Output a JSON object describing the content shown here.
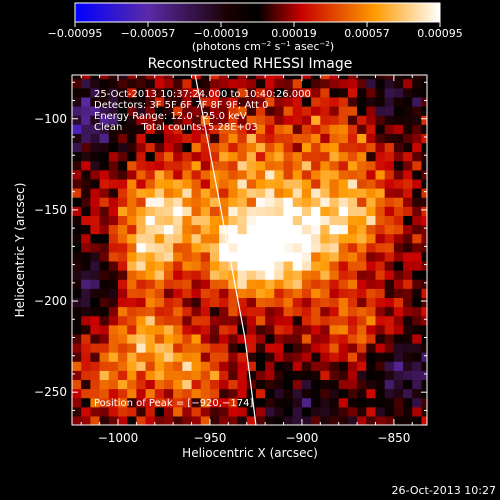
{
  "chart_data": {
    "type": "heatmap",
    "title": "Reconstructed RHESSI Image",
    "xlabel": "Heliocentric X (arcsec)",
    "ylabel": "Heliocentric Y (arcsec)",
    "xlim": [
      -1025,
      -832
    ],
    "ylim": [
      -268,
      -76
    ],
    "x_ticks": [
      -1000,
      -950,
      -900,
      -850
    ],
    "y_ticks": [
      -100,
      -150,
      -200,
      -250
    ],
    "x_tick_labels": [
      "−1000",
      "−950",
      "−900",
      "−850"
    ],
    "y_tick_labels": [
      "−100",
      "−150",
      "−200",
      "−250"
    ],
    "colorbar": {
      "min": -0.00095,
      "max": 0.00095,
      "ticks": [
        -0.00095,
        -0.00057,
        -0.00019,
        0.00019,
        0.00057,
        0.00095
      ],
      "tick_labels": [
        "−0.00095",
        "−0.00057",
        "−0.00019",
        "0.00019",
        "0.00057",
        "0.00095"
      ],
      "unit_parts": {
        "open": "(photons cm",
        "exp1": "−2",
        "mid1": " s",
        "exp2": "−1",
        "mid2": " asec",
        "exp3": "−2",
        "close": ")"
      },
      "colormap": "red-temperature"
    },
    "peak": {
      "x": -920,
      "y": -174
    },
    "annotations": {
      "time_range": "25-Oct-2013 10:37:24.000 to 10:40:26.000",
      "detectors": "Detectors: 3F 5F 6F 7F 8F 9F; Att 0",
      "energy": "Energy Range: 12.0 - 25.0 keV",
      "clean": "Clean      Total counts: 5.28E+03",
      "peak_position": "Position of Peak = [−920,−174]"
    },
    "limb_line": [
      {
        "x": -958,
        "y": -76
      },
      {
        "x": -944,
        "y": -150
      },
      {
        "x": -931,
        "y": -220
      },
      {
        "x": -925,
        "y": -268
      }
    ],
    "blobs": [
      {
        "x": -910,
        "y": -165,
        "s": 22,
        "a": 0.95
      },
      {
        "x": -935,
        "y": -175,
        "s": 14,
        "a": 0.55
      },
      {
        "x": -975,
        "y": -150,
        "s": 16,
        "a": 0.75
      },
      {
        "x": -985,
        "y": -178,
        "s": 12,
        "a": 0.55
      },
      {
        "x": -985,
        "y": -220,
        "s": 15,
        "a": 0.55
      },
      {
        "x": -960,
        "y": -240,
        "s": 14,
        "a": 0.45
      },
      {
        "x": -870,
        "y": -150,
        "s": 16,
        "a": 0.5
      },
      {
        "x": -880,
        "y": -110,
        "s": 16,
        "a": 0.35
      },
      {
        "x": -930,
        "y": -120,
        "s": 18,
        "a": 0.4
      },
      {
        "x": -870,
        "y": -215,
        "s": 15,
        "a": 0.35
      },
      {
        "x": -1005,
        "y": -245,
        "s": 12,
        "a": 0.35
      },
      {
        "x": -1015,
        "y": -100,
        "s": 14,
        "a": -0.6
      },
      {
        "x": -1015,
        "y": -190,
        "s": 12,
        "a": -0.45
      },
      {
        "x": -845,
        "y": -238,
        "s": 14,
        "a": -0.5
      },
      {
        "x": -852,
        "y": -90,
        "s": 12,
        "a": -0.4
      },
      {
        "x": -900,
        "y": -258,
        "s": 14,
        "a": -0.35
      }
    ],
    "footer_date": "26-Oct-2013 10:27"
  }
}
